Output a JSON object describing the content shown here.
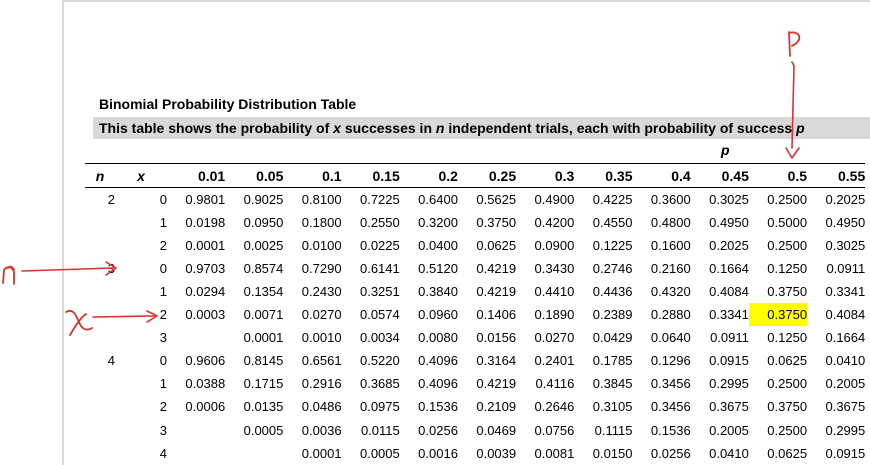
{
  "title": "Binomial Probability Distribution Table",
  "subtitle": {
    "part1": "This table shows the probability of ",
    "x": "x",
    "part2": " successes in ",
    "n": "n",
    "part3": " independent trials, each with probability of success ",
    "p": "p"
  },
  "p_axis_label": "p",
  "headers": {
    "n": "n",
    "x": "x",
    "p_values": [
      "0.01",
      "0.05",
      "0.1",
      "0.15",
      "0.2",
      "0.25",
      "0.3",
      "0.35",
      "0.4",
      "0.45",
      "0.5",
      "0.55"
    ]
  },
  "rows": [
    {
      "n": "2",
      "x": "0",
      "values": [
        "0.9801",
        "0.9025",
        "0.8100",
        "0.7225",
        "0.6400",
        "0.5625",
        "0.4900",
        "0.4225",
        "0.3600",
        "0.3025",
        "0.2500",
        "0.2025"
      ]
    },
    {
      "n": "",
      "x": "1",
      "values": [
        "0.0198",
        "0.0950",
        "0.1800",
        "0.2550",
        "0.3200",
        "0.3750",
        "0.4200",
        "0.4550",
        "0.4800",
        "0.4950",
        "0.5000",
        "0.4950"
      ]
    },
    {
      "n": "",
      "x": "2",
      "values": [
        "0.0001",
        "0.0025",
        "0.0100",
        "0.0225",
        "0.0400",
        "0.0625",
        "0.0900",
        "0.1225",
        "0.1600",
        "0.2025",
        "0.2500",
        "0.3025"
      ]
    },
    {
      "n": "3",
      "x": "0",
      "values": [
        "0.9703",
        "0.8574",
        "0.7290",
        "0.6141",
        "0.5120",
        "0.4219",
        "0.3430",
        "0.2746",
        "0.2160",
        "0.1664",
        "0.1250",
        "0.0911"
      ]
    },
    {
      "n": "",
      "x": "1",
      "values": [
        "0.0294",
        "0.1354",
        "0.2430",
        "0.3251",
        "0.3840",
        "0.4219",
        "0.4410",
        "0.4436",
        "0.4320",
        "0.4084",
        "0.3750",
        "0.3341"
      ]
    },
    {
      "n": "",
      "x": "2",
      "values": [
        "0.0003",
        "0.0071",
        "0.0270",
        "0.0574",
        "0.0960",
        "0.1406",
        "0.1890",
        "0.2389",
        "0.2880",
        "0.3341",
        "0.3750",
        "0.4084"
      ],
      "highlight_col": 10
    },
    {
      "n": "",
      "x": "3",
      "values": [
        "",
        "0.0001",
        "0.0010",
        "0.0034",
        "0.0080",
        "0.0156",
        "0.0270",
        "0.0429",
        "0.0640",
        "0.0911",
        "0.1250",
        "0.1664"
      ]
    },
    {
      "n": "4",
      "x": "0",
      "values": [
        "0.9606",
        "0.8145",
        "0.6561",
        "0.5220",
        "0.4096",
        "0.3164",
        "0.2401",
        "0.1785",
        "0.1296",
        "0.0915",
        "0.0625",
        "0.0410"
      ]
    },
    {
      "n": "",
      "x": "1",
      "values": [
        "0.0388",
        "0.1715",
        "0.2916",
        "0.3685",
        "0.4096",
        "0.4219",
        "0.4116",
        "0.3845",
        "0.3456",
        "0.2995",
        "0.2500",
        "0.2005"
      ]
    },
    {
      "n": "",
      "x": "2",
      "values": [
        "0.0006",
        "0.0135",
        "0.0486",
        "0.0975",
        "0.1536",
        "0.2109",
        "0.2646",
        "0.3105",
        "0.3456",
        "0.3675",
        "0.3750",
        "0.3675"
      ]
    },
    {
      "n": "",
      "x": "3",
      "values": [
        "",
        "0.0005",
        "0.0036",
        "0.0115",
        "0.0256",
        "0.0469",
        "0.0756",
        "0.1115",
        "0.1536",
        "0.2005",
        "0.2500",
        "0.2995"
      ]
    },
    {
      "n": "",
      "x": "4",
      "values": [
        "",
        "",
        "0.0001",
        "0.0005",
        "0.0016",
        "0.0039",
        "0.0081",
        "0.0150",
        "0.0256",
        "0.0410",
        "0.0625",
        "0.0915"
      ]
    }
  ],
  "annotations": {
    "color": "#e0302a",
    "p_mark": "P",
    "n_mark": "n",
    "x_mark": "x"
  },
  "highlight_color": "#ffff00"
}
